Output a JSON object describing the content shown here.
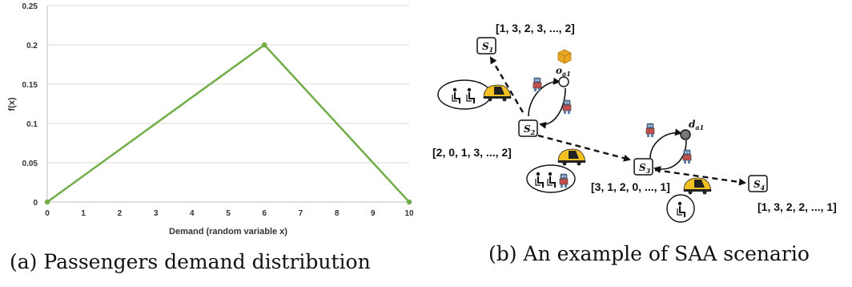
{
  "chart_data": {
    "type": "line",
    "x": [
      0,
      6,
      10
    ],
    "y": [
      0,
      0.2,
      0
    ],
    "xlabel": "Demand (random variable x)",
    "ylabel": "f(x)",
    "xlim": [
      0,
      10
    ],
    "ylim": [
      0,
      0.25
    ],
    "xticks": [
      "0",
      "1",
      "2",
      "3",
      "4",
      "5",
      "6",
      "7",
      "8",
      "9",
      "10"
    ],
    "yticks": [
      "0",
      "0.05",
      "0.1",
      "0.15",
      "0.2",
      "0.25"
    ],
    "grid": "horizontal",
    "color": "#70ad47"
  },
  "captions": {
    "a_label": "(a)",
    "a_text": "Passengers demand distribution",
    "b_label": "(b)",
    "b_text": "An example of SAA scenario"
  },
  "diagram": {
    "states": [
      {
        "sub": "1",
        "vector": "[1, 3, 2, 3, ..., 2]"
      },
      {
        "sub": "2",
        "vector": "[2, 0, 1, 3, ..., 2]"
      },
      {
        "sub": "3",
        "vector": "[3, 1, 2, 0, ..., 1]"
      },
      {
        "sub": "4",
        "vector": "[1, 3, 2, 2, ..., 1]"
      }
    ],
    "state_letter": "S",
    "origin": {
      "letter": "o",
      "sub": "a1"
    },
    "destination": {
      "letter": "d",
      "sub": "a1"
    }
  }
}
